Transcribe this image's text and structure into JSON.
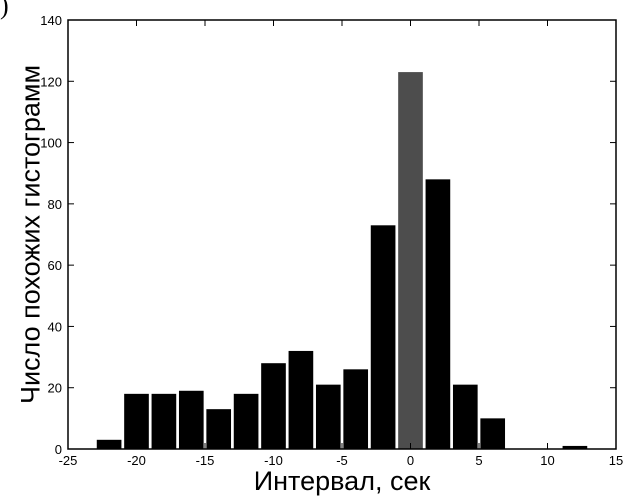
{
  "corner_label": ")",
  "chart_data": {
    "type": "bar",
    "title": "",
    "xlabel": "Интервал, сек",
    "ylabel": "Число похожих гистограмм",
    "xlim": [
      -25,
      15
    ],
    "ylim": [
      0,
      140
    ],
    "xticks": [
      -25,
      -20,
      -15,
      -10,
      -5,
      0,
      5,
      10,
      15
    ],
    "yticks": [
      0,
      20,
      40,
      60,
      80,
      100,
      120,
      140
    ],
    "bar_width": 1.8,
    "x": [
      -22,
      -20,
      -18,
      -16,
      -14,
      -12,
      -10,
      -8,
      -6,
      -4,
      -2,
      0,
      2,
      4,
      6,
      8,
      10,
      12
    ],
    "values": [
      3,
      18,
      18,
      19,
      13,
      18,
      28,
      32,
      21,
      26,
      73,
      123,
      88,
      21,
      10,
      0,
      0,
      1
    ],
    "highlight_x": 0,
    "colors": {
      "bar": "#000000",
      "highlight": "#4d4d4d",
      "axis": "#000000"
    },
    "grid": false
  }
}
